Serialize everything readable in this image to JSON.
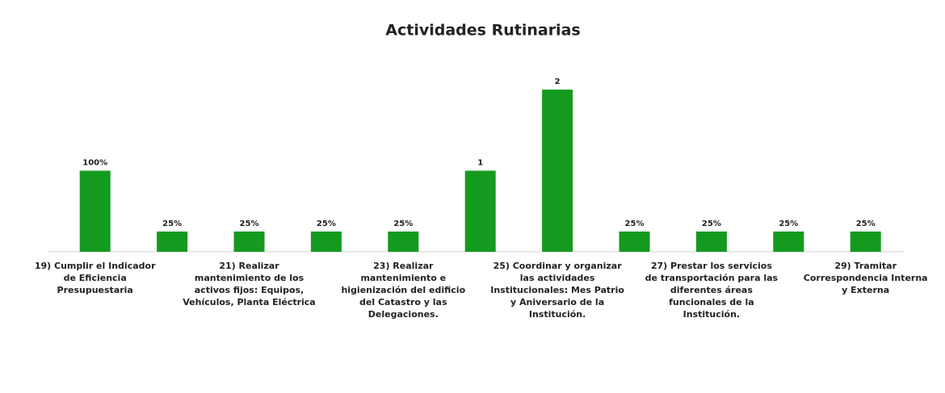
{
  "chart_data": {
    "type": "bar",
    "title": "Actividades Rutinarias",
    "categories": [
      "19)  Cumplir el Indicador\nde Eficiencia\nPresupuestaria",
      null,
      "21) Realizar\nmantenimiento de los\nactivos fijos: Equipos,\nVehículos, Planta Eléctrica",
      null,
      "23) Realizar\nmantenimiento e\nhigienización del edificio\ndel Catastro y las\nDelegaciones.",
      null,
      "25) Coordinar y organizar\nlas actividades\nInstitucionales: Mes Patrio\ny Aniversario de la\nInstitución.",
      null,
      "27) Prestar los servicios\nde transportación para las\ndiferentes áreas\nfuncionales de la\nInstitución.",
      null,
      "29) Tramitar\nCorrespondencia Interna\ny Externa"
    ],
    "values": [
      1,
      0.25,
      0.25,
      0.25,
      0.25,
      1,
      2,
      0.25,
      0.25,
      0.25,
      0.25
    ],
    "value_labels": [
      "100%",
      "25%",
      "25%",
      "25%",
      "25%",
      "1",
      "2",
      "25%",
      "25%",
      "25%",
      "25%"
    ],
    "color": "#149a1e",
    "ylim": [
      0,
      2.1
    ]
  }
}
